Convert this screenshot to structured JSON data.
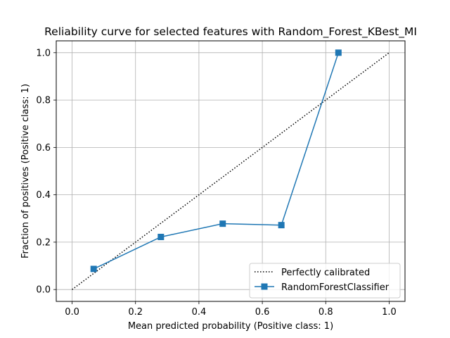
{
  "chart_data": {
    "type": "line",
    "title": "Reliability curve for selected features with Random_Forest_KBest_MI",
    "xlabel": "Mean predicted probability (Positive class: 1)",
    "ylabel": "Fraction of positives (Positive class: 1)",
    "xlim": [
      -0.05,
      1.05
    ],
    "ylim": [
      -0.05,
      1.05
    ],
    "xticks": [
      "0.0",
      "0.2",
      "0.4",
      "0.6",
      "0.8",
      "1.0"
    ],
    "yticks": [
      "0.0",
      "0.2",
      "0.4",
      "0.6",
      "0.8",
      "1.0"
    ],
    "grid": true,
    "legend_position": "lower-right",
    "series": [
      {
        "name": "Perfectly calibrated",
        "style": "dotted",
        "color": "#000000",
        "x": [
          0.0,
          1.0
        ],
        "y": [
          0.0,
          1.0
        ]
      },
      {
        "name": "RandomForestClassifier",
        "style": "solid-square-markers",
        "color": "#1f77b4",
        "x": [
          0.068,
          0.28,
          0.475,
          0.66,
          0.84
        ],
        "y": [
          0.087,
          0.222,
          0.278,
          0.272,
          1.0
        ]
      }
    ]
  }
}
